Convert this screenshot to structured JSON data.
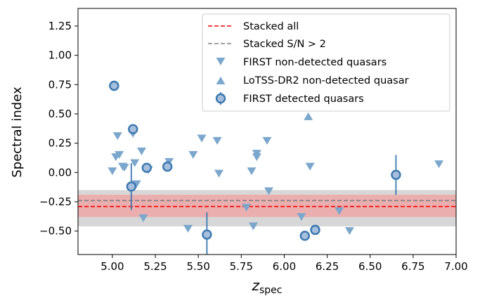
{
  "chart_data": {
    "type": "scatter",
    "xlabel": "z",
    "xlabel_sub": "spec",
    "ylabel": "Spectral index",
    "xlim": [
      4.8,
      7.0
    ],
    "ylim": [
      -0.7,
      1.4
    ],
    "xticks": [
      "5.00",
      "5.25",
      "5.50",
      "5.75",
      "6.00",
      "6.25",
      "6.50",
      "6.75",
      "7.00"
    ],
    "yticks": [
      "1.25",
      "1.00",
      "0.75",
      "0.50",
      "0.25",
      "0.00",
      "−0.25",
      "−0.50"
    ],
    "xtick_values": [
      5.0,
      5.25,
      5.5,
      5.75,
      6.0,
      6.25,
      6.5,
      6.75,
      7.0
    ],
    "ytick_values": [
      1.25,
      1.0,
      0.75,
      0.5,
      0.25,
      0.0,
      -0.25,
      -0.5
    ],
    "legend_position": "top-right",
    "colors": {
      "stacked_all": "#ff0000",
      "stacked_sn": "#808080",
      "markers": "#7ba7cc",
      "detected_edge": "#3a78b0",
      "detected_fill": "#a7bfdc",
      "band_red": "#f2a0a0",
      "band_gray": "#d0d0d0"
    },
    "stacked_all": {
      "name": "Stacked all",
      "value": -0.29,
      "band": [
        -0.38,
        -0.19
      ]
    },
    "stacked_sn": {
      "name": "Stacked S/N > 2",
      "value": -0.24,
      "band": [
        -0.46,
        -0.15
      ]
    },
    "series": [
      {
        "name": "FIRST non-detected quasars",
        "marker": "triangle-down",
        "points": [
          [
            5.0,
            0.01
          ],
          [
            5.02,
            0.13
          ],
          [
            5.03,
            0.31
          ],
          [
            5.04,
            0.15
          ],
          [
            5.06,
            0.05
          ],
          [
            5.07,
            0.04
          ],
          [
            5.12,
            0.33
          ],
          [
            5.13,
            0.08
          ],
          [
            5.14,
            -0.1
          ],
          [
            5.17,
            0.18
          ],
          [
            5.18,
            -0.39
          ],
          [
            5.21,
            0.02
          ],
          [
            5.33,
            0.09
          ],
          [
            5.44,
            -0.48
          ],
          [
            5.47,
            0.15
          ],
          [
            5.52,
            0.29
          ],
          [
            5.61,
            0.27
          ],
          [
            5.62,
            -0.01
          ],
          [
            5.78,
            -0.3
          ],
          [
            5.81,
            0.01
          ],
          [
            5.82,
            -0.46
          ],
          [
            5.84,
            0.16
          ],
          [
            5.84,
            0.13
          ],
          [
            5.9,
            0.27
          ],
          [
            5.91,
            -0.16
          ],
          [
            6.1,
            -0.38
          ],
          [
            6.15,
            0.05
          ],
          [
            6.32,
            -0.33
          ],
          [
            6.38,
            -0.5
          ],
          [
            6.9,
            0.07
          ]
        ]
      },
      {
        "name": "LoTSS-DR2 non-detected quasar",
        "marker": "triangle-up",
        "points": [
          [
            6.14,
            0.48
          ]
        ]
      },
      {
        "name": "FIRST detected quasars",
        "marker": "circle",
        "points": [
          {
            "x": 5.01,
            "y": 0.74,
            "err": 0.0
          },
          {
            "x": 5.11,
            "y": -0.12,
            "err": 0.2
          },
          {
            "x": 5.12,
            "y": 0.37,
            "err": 0.0
          },
          {
            "x": 5.2,
            "y": 0.04,
            "err": 0.03
          },
          {
            "x": 5.32,
            "y": 0.05,
            "err": 0.0
          },
          {
            "x": 5.55,
            "y": -0.53,
            "err": 0.19
          },
          {
            "x": 6.12,
            "y": -0.54,
            "err": 0.0
          },
          {
            "x": 6.18,
            "y": -0.49,
            "err": 0.0
          },
          {
            "x": 6.65,
            "y": -0.02,
            "err": 0.17
          }
        ]
      }
    ]
  },
  "legend": {
    "items": [
      "Stacked all",
      "Stacked S/N > 2",
      "FIRST non-detected quasars",
      "LoTSS-DR2 non-detected quasar",
      "FIRST detected quasars"
    ]
  }
}
